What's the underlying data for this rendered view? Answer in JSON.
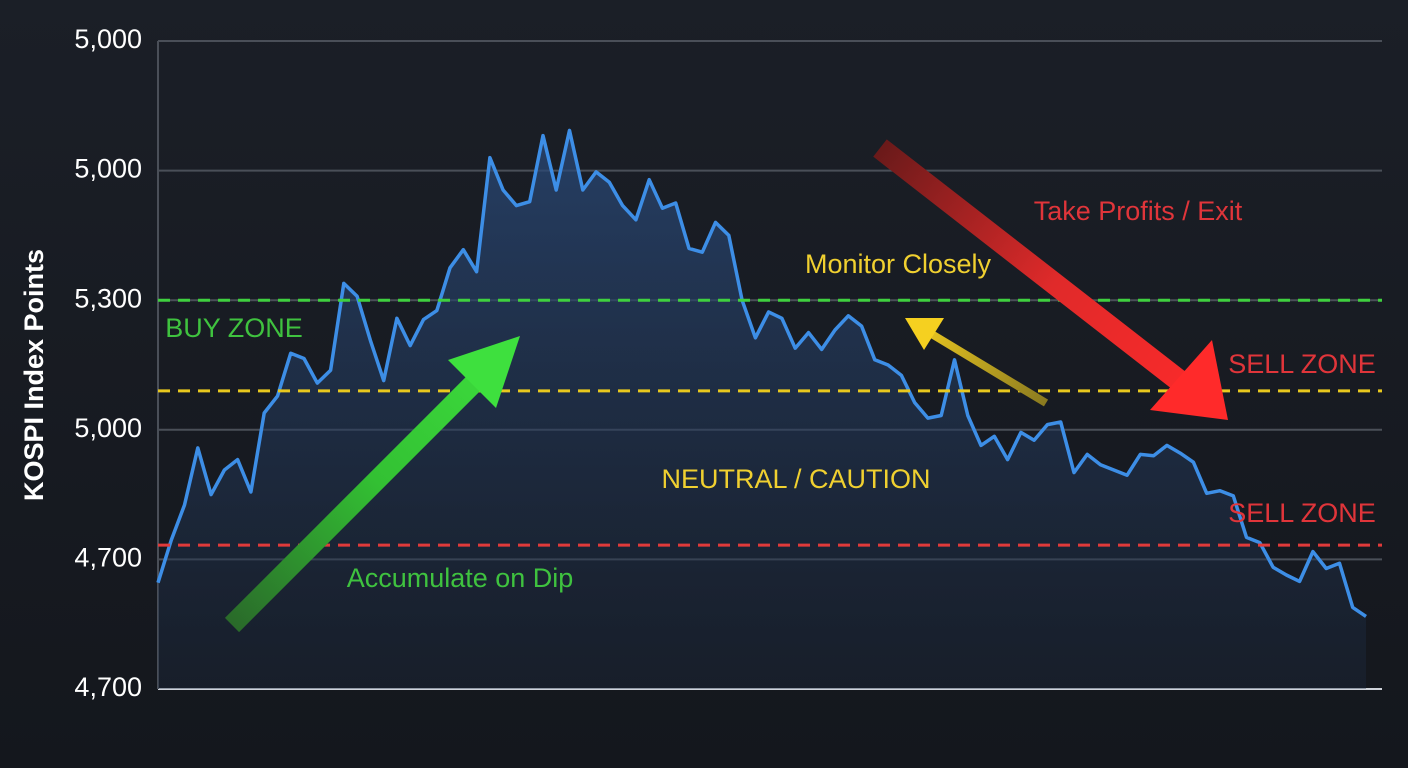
{
  "chart_data": {
    "type": "line",
    "y_label": "KOSPI Index Points",
    "ylim": [
      0,
      5
    ],
    "yticks": [
      0,
      1,
      2,
      3,
      4,
      5
    ],
    "ytick_labels": [
      "4,700",
      "4,700",
      "5,000",
      "5,300",
      "5,000",
      "5,000"
    ],
    "grid": true,
    "series": [
      {
        "color": "#3d8ee6",
        "values": [
          0.82,
          1.15,
          1.42,
          1.86,
          1.5,
          1.69,
          1.77,
          1.52,
          2.13,
          2.26,
          2.59,
          2.55,
          2.36,
          2.46,
          3.13,
          3.03,
          2.69,
          2.38,
          2.86,
          2.65,
          2.85,
          2.92,
          3.25,
          3.39,
          3.22,
          4.1,
          3.85,
          3.73,
          3.76,
          4.27,
          3.85,
          4.31,
          3.85,
          3.99,
          3.91,
          3.73,
          3.62,
          3.93,
          3.71,
          3.75,
          3.4,
          3.37,
          3.6,
          3.5,
          3.0,
          2.71,
          2.91,
          2.86,
          2.63,
          2.75,
          2.62,
          2.77,
          2.88,
          2.8,
          2.54,
          2.5,
          2.42,
          2.21,
          2.09,
          2.11,
          2.54,
          2.11,
          1.88,
          1.95,
          1.77,
          1.98,
          1.92,
          2.04,
          2.06,
          1.67,
          1.81,
          1.73,
          1.69,
          1.65,
          1.81,
          1.8,
          1.88,
          1.82,
          1.75,
          1.51,
          1.53,
          1.49,
          1.17,
          1.13,
          0.94,
          0.88,
          0.83,
          1.06,
          0.93,
          0.97,
          0.63,
          0.56
        ]
      }
    ],
    "reference_lines": [
      {
        "value": 3,
        "color": "#3fd03f"
      },
      {
        "value": 2.3,
        "color": "#e8c81e"
      },
      {
        "value": 1.11,
        "color": "#e03a3a"
      }
    ],
    "annotations": [
      {
        "text": "Take Profits / Exit",
        "color": "#e0353a"
      },
      {
        "text": "Monitor Closely",
        "color": "#f0d030"
      },
      {
        "text": "BUY ZONE",
        "color": "#3fc23f"
      },
      {
        "text": "SELL ZONE",
        "color": "#e0353a"
      },
      {
        "text": "NEUTRAL / CAUTION",
        "color": "#f0d030"
      },
      {
        "text": "SELL ZONE",
        "color": "#e0353a"
      },
      {
        "text": "Accumulate on Dip",
        "color": "#3fc23f"
      }
    ]
  }
}
